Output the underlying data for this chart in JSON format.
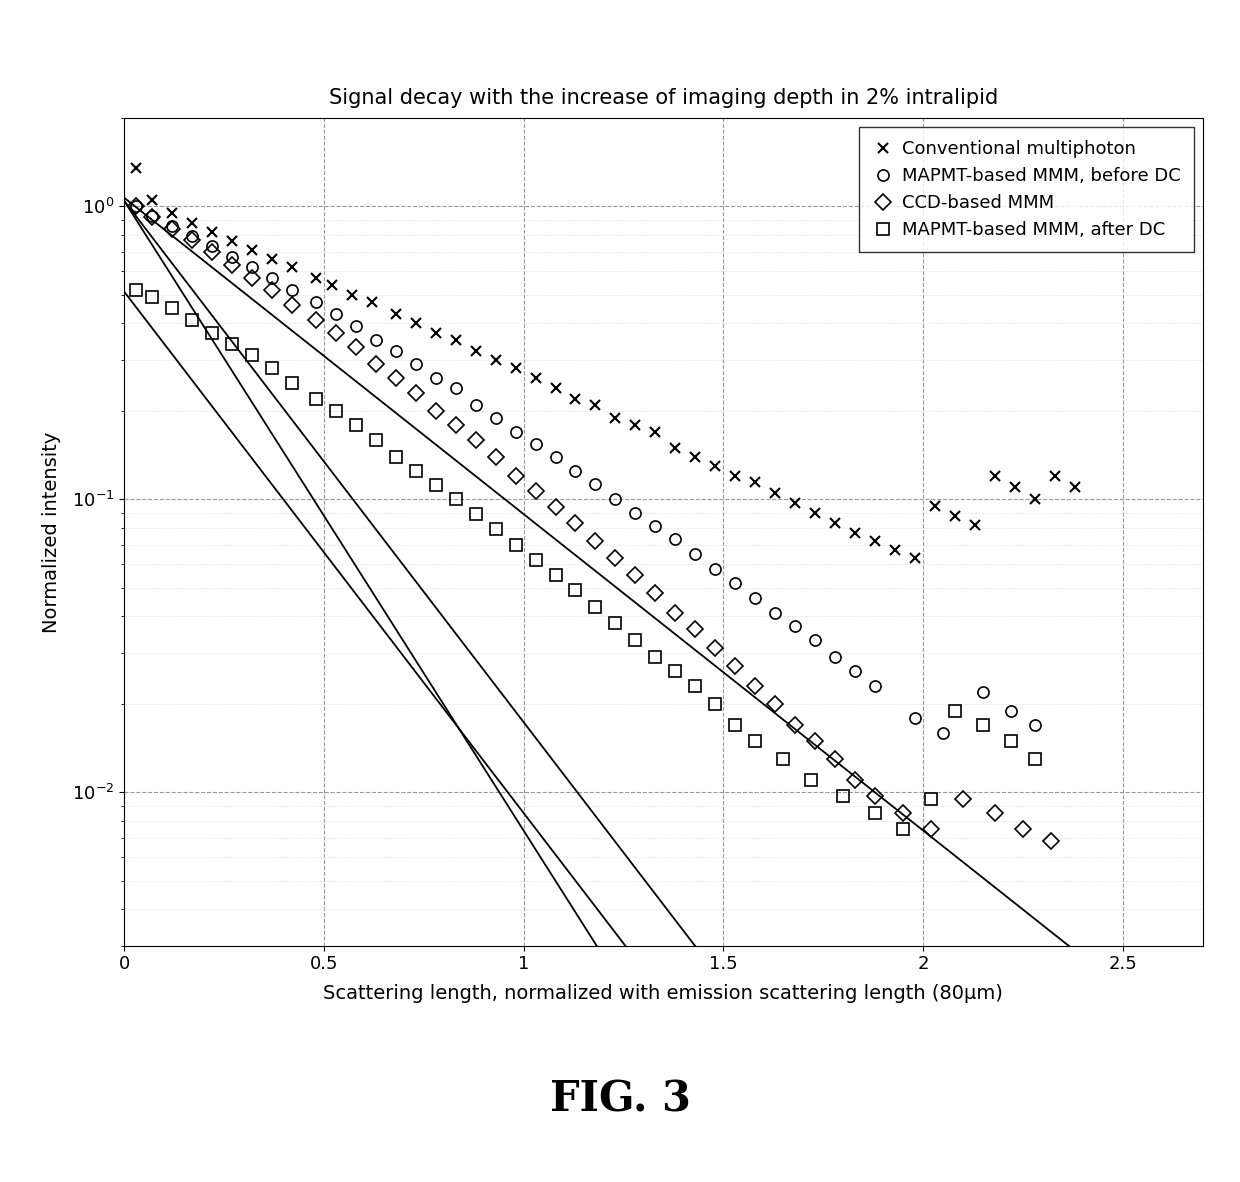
{
  "title": "Signal decay with the increase of imaging depth in 2% intralipid",
  "xlabel": "Scattering length, normalized with emission scattering length (80μm)",
  "ylabel": "Normalized intensity",
  "fig_label": "FIG. 3",
  "xlim": [
    0,
    2.7
  ],
  "ylim_low": 0.003,
  "ylim_high": 2.0,
  "xticks": [
    0,
    0.5,
    1,
    1.5,
    2,
    2.5
  ],
  "legend_entries": [
    "Conventional multiphoton",
    "MAPMT-based MMM, before DC",
    "CCD-based MMM",
    "MAPMT-based MMM, after DC"
  ],
  "conv_x": [
    0.03,
    0.07,
    0.12,
    0.17,
    0.22,
    0.27,
    0.32,
    0.37,
    0.42,
    0.48,
    0.52,
    0.57,
    0.62,
    0.68,
    0.73,
    0.78,
    0.83,
    0.88,
    0.93,
    0.98,
    1.03,
    1.08,
    1.13,
    1.18,
    1.23,
    1.28,
    1.33,
    1.38,
    1.43,
    1.48,
    1.53,
    1.58,
    1.63,
    1.68,
    1.73,
    1.78,
    1.83,
    1.88,
    1.93,
    1.98,
    2.03,
    2.08,
    2.13,
    2.18,
    2.23,
    2.28,
    2.33,
    2.38
  ],
  "conv_y": [
    1.35,
    1.05,
    0.95,
    0.88,
    0.82,
    0.76,
    0.71,
    0.66,
    0.62,
    0.57,
    0.54,
    0.5,
    0.47,
    0.43,
    0.4,
    0.37,
    0.35,
    0.32,
    0.3,
    0.28,
    0.26,
    0.24,
    0.22,
    0.21,
    0.19,
    0.18,
    0.17,
    0.15,
    0.14,
    0.13,
    0.12,
    0.115,
    0.105,
    0.097,
    0.09,
    0.083,
    0.077,
    0.072,
    0.067,
    0.063,
    0.095,
    0.088,
    0.082,
    0.12,
    0.11,
    0.1,
    0.12,
    0.11
  ],
  "mapmt_before_x": [
    0.03,
    0.07,
    0.12,
    0.17,
    0.22,
    0.27,
    0.32,
    0.37,
    0.42,
    0.48,
    0.53,
    0.58,
    0.63,
    0.68,
    0.73,
    0.78,
    0.83,
    0.88,
    0.93,
    0.98,
    1.03,
    1.08,
    1.13,
    1.18,
    1.23,
    1.28,
    1.33,
    1.38,
    1.43,
    1.48,
    1.53,
    1.58,
    1.63,
    1.68,
    1.73,
    1.78,
    1.83,
    1.88,
    1.98,
    2.05,
    2.15,
    2.22,
    2.28
  ],
  "mapmt_before_y": [
    1.0,
    0.93,
    0.86,
    0.79,
    0.73,
    0.67,
    0.62,
    0.57,
    0.52,
    0.47,
    0.43,
    0.39,
    0.35,
    0.32,
    0.29,
    0.26,
    0.24,
    0.21,
    0.19,
    0.17,
    0.155,
    0.14,
    0.125,
    0.113,
    0.1,
    0.09,
    0.081,
    0.073,
    0.065,
    0.058,
    0.052,
    0.046,
    0.041,
    0.037,
    0.033,
    0.029,
    0.026,
    0.023,
    0.018,
    0.016,
    0.022,
    0.019,
    0.017
  ],
  "ccd_x": [
    0.03,
    0.07,
    0.12,
    0.17,
    0.22,
    0.27,
    0.32,
    0.37,
    0.42,
    0.48,
    0.53,
    0.58,
    0.63,
    0.68,
    0.73,
    0.78,
    0.83,
    0.88,
    0.93,
    0.98,
    1.03,
    1.08,
    1.13,
    1.18,
    1.23,
    1.28,
    1.33,
    1.38,
    1.43,
    1.48,
    1.53,
    1.58,
    1.63,
    1.68,
    1.73,
    1.78,
    1.83,
    1.88,
    1.95,
    2.02,
    2.1,
    2.18,
    2.25,
    2.32
  ],
  "ccd_y": [
    1.0,
    0.92,
    0.84,
    0.77,
    0.7,
    0.63,
    0.57,
    0.52,
    0.46,
    0.41,
    0.37,
    0.33,
    0.29,
    0.26,
    0.23,
    0.2,
    0.18,
    0.16,
    0.14,
    0.12,
    0.107,
    0.094,
    0.083,
    0.072,
    0.063,
    0.055,
    0.048,
    0.041,
    0.036,
    0.031,
    0.027,
    0.023,
    0.02,
    0.017,
    0.015,
    0.013,
    0.011,
    0.0097,
    0.0085,
    0.0075,
    0.0095,
    0.0085,
    0.0075,
    0.0068
  ],
  "mapmt_after_x": [
    0.03,
    0.07,
    0.12,
    0.17,
    0.22,
    0.27,
    0.32,
    0.37,
    0.42,
    0.48,
    0.53,
    0.58,
    0.63,
    0.68,
    0.73,
    0.78,
    0.83,
    0.88,
    0.93,
    0.98,
    1.03,
    1.08,
    1.13,
    1.18,
    1.23,
    1.28,
    1.33,
    1.38,
    1.43,
    1.48,
    1.53,
    1.58,
    1.65,
    1.72,
    1.8,
    1.88,
    1.95,
    2.02,
    2.08,
    2.15,
    2.22,
    2.28
  ],
  "mapmt_after_y": [
    0.52,
    0.49,
    0.45,
    0.41,
    0.37,
    0.34,
    0.31,
    0.28,
    0.25,
    0.22,
    0.2,
    0.18,
    0.16,
    0.14,
    0.125,
    0.112,
    0.1,
    0.089,
    0.079,
    0.07,
    0.062,
    0.055,
    0.049,
    0.043,
    0.038,
    0.033,
    0.029,
    0.026,
    0.023,
    0.02,
    0.017,
    0.015,
    0.013,
    0.011,
    0.0097,
    0.0085,
    0.0075,
    0.0095,
    0.019,
    0.017,
    0.015,
    0.013
  ],
  "line_conv_slope": -1.08,
  "line_conv_intercept": 0.03,
  "line_mapmt_before_slope": -1.78,
  "line_mapmt_before_intercept": 0.02,
  "line_ccd_slope": -2.15,
  "line_ccd_intercept": 0.02,
  "line_mapmt_after_slope": -1.78,
  "line_mapmt_after_intercept": -0.29,
  "background_color": "#ffffff"
}
